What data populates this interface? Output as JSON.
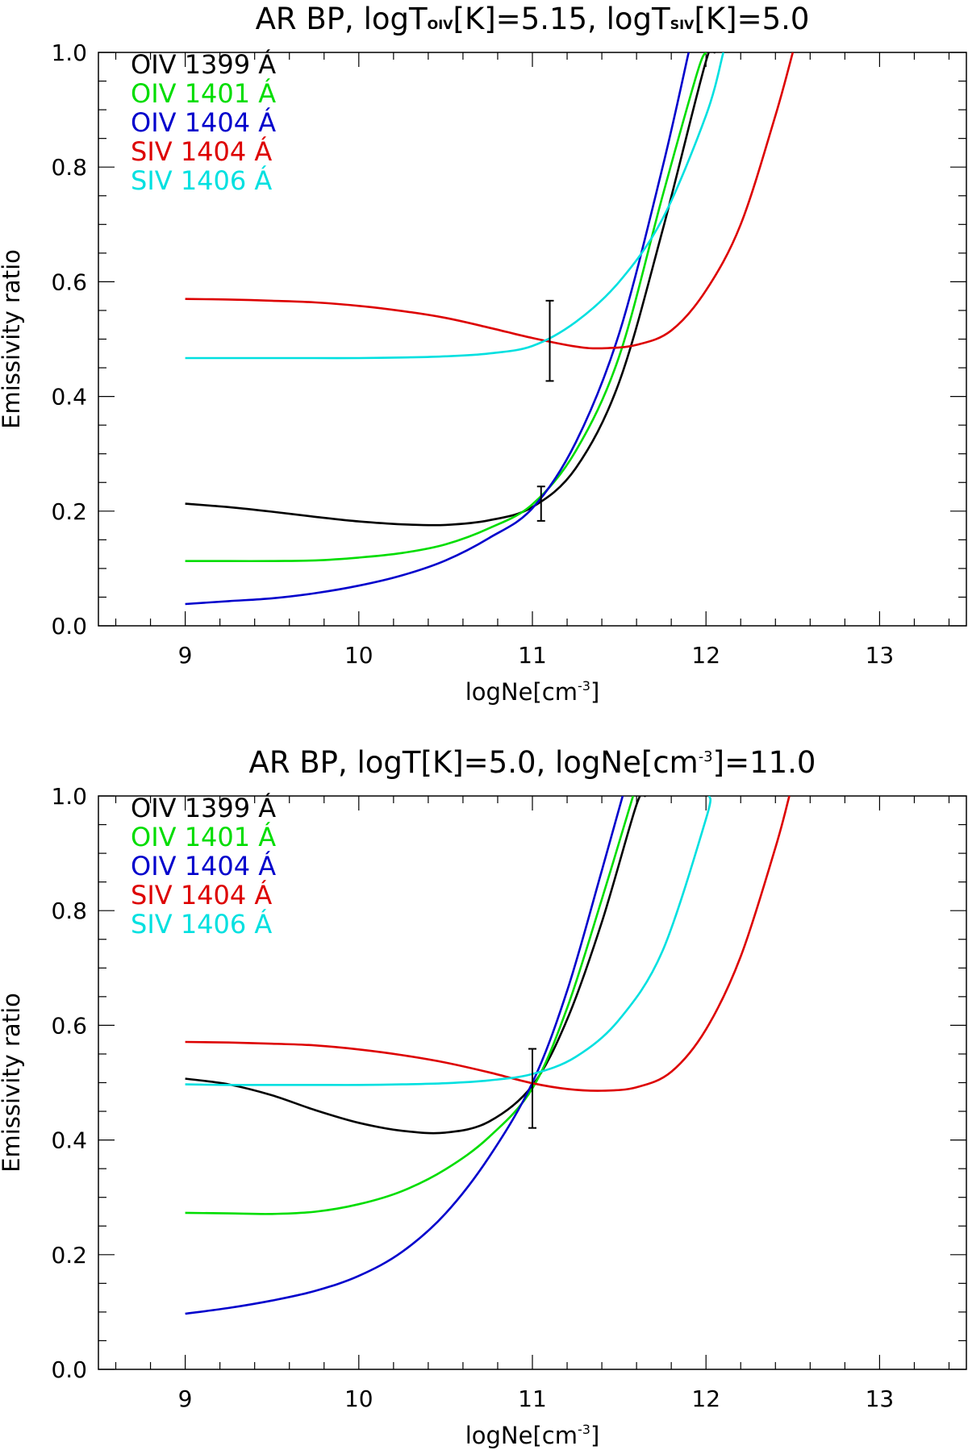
{
  "chart_data": [
    {
      "type": "line",
      "title_parts": [
        "AR BP, logT",
        "OIV",
        "[K]=5.15, logT",
        "SIV",
        "[K]=5.0"
      ],
      "xlabel_base": "logNe[cm",
      "xlabel_sup": "-3",
      "xlabel_close": "]",
      "ylabel": "Emissivity ratio",
      "xlim": [
        8.5,
        13.5
      ],
      "ylim": [
        0.0,
        1.0
      ],
      "xticks": [
        "9",
        "10",
        "11",
        "12",
        "13"
      ],
      "yticks": [
        "0.0",
        "0.2",
        "0.4",
        "0.6",
        "0.8",
        "1.0"
      ],
      "series": [
        {
          "name": "OIV 1399 Á",
          "color": "#000000",
          "x": [
            9.0,
            9.25,
            9.5,
            9.75,
            10.0,
            10.25,
            10.5,
            10.75,
            11.0,
            11.25,
            11.5,
            11.75,
            12.0,
            12.05
          ],
          "y": [
            0.213,
            0.207,
            0.199,
            0.19,
            0.182,
            0.177,
            0.176,
            0.184,
            0.207,
            0.275,
            0.425,
            0.69,
            0.985,
            1.0
          ]
        },
        {
          "name": "OIV 1401 Á",
          "color": "#00dd00",
          "x": [
            9.0,
            9.25,
            9.5,
            9.75,
            10.0,
            10.25,
            10.5,
            10.75,
            11.0,
            11.25,
            11.5,
            11.75,
            11.95,
            12.0
          ],
          "y": [
            0.113,
            0.113,
            0.113,
            0.114,
            0.119,
            0.127,
            0.142,
            0.17,
            0.212,
            0.305,
            0.47,
            0.75,
            0.965,
            1.0
          ]
        },
        {
          "name": "OIV 1404 Á",
          "color": "#0000cc",
          "x": [
            9.0,
            9.25,
            9.5,
            9.75,
            10.0,
            10.25,
            10.5,
            10.75,
            11.0,
            11.25,
            11.5,
            11.75,
            11.9
          ],
          "y": [
            0.038,
            0.043,
            0.048,
            0.057,
            0.07,
            0.088,
            0.114,
            0.153,
            0.205,
            0.32,
            0.51,
            0.8,
            1.0
          ]
        },
        {
          "name": "SIV 1404 Á",
          "color": "#dd0000",
          "x": [
            9.0,
            9.25,
            9.5,
            9.75,
            10.0,
            10.25,
            10.5,
            10.75,
            11.0,
            11.25,
            11.4,
            11.6,
            11.8,
            12.0,
            12.2,
            12.4,
            12.5
          ],
          "y": [
            0.57,
            0.569,
            0.567,
            0.564,
            0.558,
            0.549,
            0.537,
            0.52,
            0.502,
            0.487,
            0.484,
            0.49,
            0.515,
            0.585,
            0.7,
            0.89,
            1.0
          ]
        },
        {
          "name": "SIV 1406 Á",
          "color": "#00e0e0",
          "x": [
            9.0,
            9.25,
            9.5,
            9.75,
            10.0,
            10.25,
            10.5,
            10.75,
            11.0,
            11.25,
            11.5,
            11.75,
            12.0,
            12.1
          ],
          "y": [
            0.467,
            0.467,
            0.467,
            0.467,
            0.467,
            0.468,
            0.47,
            0.475,
            0.488,
            0.53,
            0.6,
            0.71,
            0.89,
            1.0
          ]
        }
      ],
      "errorbars": [
        {
          "x": 11.1,
          "y": 0.497,
          "low": 0.427,
          "high": 0.567
        },
        {
          "x": 11.05,
          "y": 0.213,
          "low": 0.183,
          "high": 0.243
        }
      ]
    },
    {
      "type": "line",
      "title_parts": [
        "AR BP, logT[K]=5.0, logNe[cm",
        "-3",
        "]=11.0"
      ],
      "xlabel_base": "logNe[cm",
      "xlabel_sup": "-3",
      "xlabel_close": "]",
      "ylabel": "Emissivity ratio",
      "xlim": [
        8.5,
        13.5
      ],
      "ylim": [
        0.0,
        1.0
      ],
      "xticks": [
        "9",
        "10",
        "11",
        "12",
        "13"
      ],
      "yticks": [
        "0.0",
        "0.2",
        "0.4",
        "0.6",
        "0.8",
        "1.0"
      ],
      "series": [
        {
          "name": "OIV 1399 Á",
          "color": "#000000",
          "x": [
            9.0,
            9.25,
            9.5,
            9.75,
            10.0,
            10.25,
            10.5,
            10.75,
            11.0,
            11.2,
            11.4,
            11.6,
            11.65
          ],
          "y": [
            0.507,
            0.497,
            0.478,
            0.452,
            0.43,
            0.416,
            0.413,
            0.432,
            0.495,
            0.61,
            0.78,
            0.985,
            1.0
          ]
        },
        {
          "name": "OIV 1401 Á",
          "color": "#00dd00",
          "x": [
            9.0,
            9.25,
            9.5,
            9.75,
            10.0,
            10.25,
            10.5,
            10.75,
            11.0,
            11.2,
            11.4,
            11.58
          ],
          "y": [
            0.273,
            0.272,
            0.271,
            0.275,
            0.288,
            0.311,
            0.349,
            0.405,
            0.49,
            0.63,
            0.82,
            1.0
          ]
        },
        {
          "name": "OIV 1404 Á",
          "color": "#0000cc",
          "x": [
            9.0,
            9.25,
            9.5,
            9.75,
            10.0,
            10.25,
            10.5,
            10.75,
            11.0,
            11.2,
            11.4,
            11.52
          ],
          "y": [
            0.097,
            0.107,
            0.12,
            0.137,
            0.163,
            0.205,
            0.272,
            0.37,
            0.5,
            0.66,
            0.87,
            1.0
          ]
        },
        {
          "name": "SIV 1404 Á",
          "color": "#dd0000",
          "x": [
            9.0,
            9.25,
            9.5,
            9.75,
            10.0,
            10.25,
            10.5,
            10.75,
            11.0,
            11.2,
            11.4,
            11.6,
            11.8,
            12.0,
            12.2,
            12.4,
            12.48
          ],
          "y": [
            0.571,
            0.57,
            0.568,
            0.565,
            0.558,
            0.548,
            0.535,
            0.518,
            0.499,
            0.489,
            0.486,
            0.492,
            0.519,
            0.593,
            0.72,
            0.91,
            1.0
          ]
        },
        {
          "name": "SIV 1406 Á",
          "color": "#00e0e0",
          "x": [
            9.0,
            9.25,
            9.5,
            9.75,
            10.0,
            10.25,
            10.5,
            10.75,
            11.0,
            11.25,
            11.5,
            11.75,
            12.0,
            12.02
          ],
          "y": [
            0.497,
            0.496,
            0.496,
            0.496,
            0.496,
            0.497,
            0.499,
            0.504,
            0.515,
            0.545,
            0.61,
            0.73,
            0.96,
            1.0
          ]
        }
      ],
      "errorbars": [
        {
          "x": 11.0,
          "y": 0.49,
          "low": 0.421,
          "high": 0.559
        }
      ]
    }
  ]
}
